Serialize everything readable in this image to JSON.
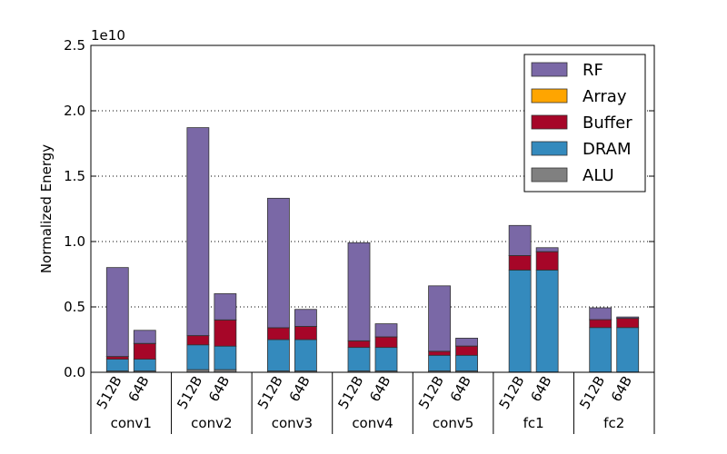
{
  "chart_data": {
    "type": "bar",
    "stacked": true,
    "ylabel": "Normalized Energy",
    "y_offset_text": "1e10",
    "y_scale": 10000000000,
    "ylim": [
      0,
      2.5
    ],
    "yticks": [
      "0.0",
      "0.5",
      "1.0",
      "1.5",
      "2.0",
      "2.5"
    ],
    "grid": "horizontal dotted",
    "legend_position": "top-right",
    "groups": [
      {
        "name": "conv1",
        "categories": [
          "512B",
          "64B"
        ]
      },
      {
        "name": "conv2",
        "categories": [
          "512B",
          "64B"
        ]
      },
      {
        "name": "conv3",
        "categories": [
          "512B",
          "64B"
        ]
      },
      {
        "name": "conv4",
        "categories": [
          "512B",
          "64B"
        ]
      },
      {
        "name": "conv5",
        "categories": [
          "512B",
          "64B"
        ]
      },
      {
        "name": "fc1",
        "categories": [
          "512B",
          "64B"
        ]
      },
      {
        "name": "fc2",
        "categories": [
          "512B",
          "64B"
        ]
      }
    ],
    "series": [
      {
        "name": "ALU",
        "color": "#808080",
        "values": [
          0.01,
          0.01,
          0.02,
          0.02,
          0.01,
          0.01,
          0.01,
          0.01,
          0.01,
          0.01,
          0.002,
          0.002,
          0.002,
          0.002
        ]
      },
      {
        "name": "DRAM",
        "color": "#348abd",
        "values": [
          0.09,
          0.09,
          0.19,
          0.18,
          0.24,
          0.24,
          0.18,
          0.18,
          0.12,
          0.12,
          0.78,
          0.78,
          0.34,
          0.34
        ]
      },
      {
        "name": "Buffer",
        "color": "#a60628",
        "values": [
          0.02,
          0.12,
          0.07,
          0.2,
          0.09,
          0.1,
          0.05,
          0.08,
          0.03,
          0.07,
          0.11,
          0.14,
          0.06,
          0.07
        ]
      },
      {
        "name": "Array",
        "color": "#ffa500",
        "values": [
          0.001,
          0.001,
          0.001,
          0.001,
          0.001,
          0.001,
          0.001,
          0.001,
          0.001,
          0.001,
          0.001,
          0.001,
          0.001,
          0.001
        ]
      },
      {
        "name": "RF",
        "color": "#7a68a6",
        "values": [
          0.68,
          0.1,
          1.59,
          0.2,
          0.99,
          0.13,
          0.75,
          0.1,
          0.5,
          0.06,
          0.23,
          0.03,
          0.09,
          0.01
        ]
      }
    ],
    "legend_order": [
      "RF",
      "Array",
      "Buffer",
      "DRAM",
      "ALU"
    ]
  }
}
